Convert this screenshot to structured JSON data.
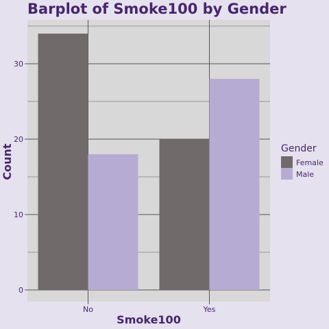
{
  "chart_data": {
    "type": "bar",
    "title": "Barplot of Smoke100 by Gender",
    "xlabel": "Smoke100",
    "ylabel": "Count",
    "categories": [
      "No",
      "Yes"
    ],
    "series": [
      {
        "name": "Female",
        "values": [
          34,
          20
        ],
        "color": "#706a6a"
      },
      {
        "name": "Male",
        "values": [
          18,
          28
        ],
        "color": "#b6acd3"
      }
    ],
    "ylim": [
      0,
      36.5
    ],
    "yticks": [
      0,
      10,
      20,
      30
    ],
    "grid": true,
    "legend": {
      "title": "Gender",
      "placement": "right"
    },
    "colors": {
      "background": "#e5e1ee",
      "panel": "#d9d8d8",
      "gridline": "#555555",
      "text": "#47266d"
    }
  }
}
